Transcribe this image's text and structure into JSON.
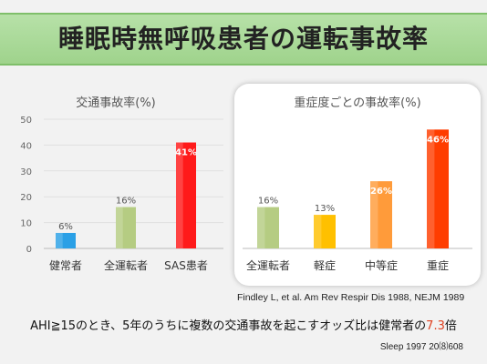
{
  "slide": {
    "title": "睡眠時無呼吸患者の運転事故率",
    "citation": "Findley L, et al. Am Rev Respir Dis 1988, NEJM 1989",
    "summary_before": "AHI≧15のとき、5年のうちに複数の交通事故を起こすオッズ比は健常者の",
    "summary_value": "7.3",
    "summary_after": "倍",
    "reference": "Sleep 1997  20⑻608",
    "colors": {
      "title_band": "#a8d99a",
      "highlight": "#e0401f"
    }
  },
  "chart_data": [
    {
      "type": "bar",
      "title": "交通事故率(%)",
      "categories": [
        "健常者",
        "全運転者",
        "SAS患者"
      ],
      "values": [
        6,
        16,
        41
      ],
      "data_labels": [
        "6%",
        "16%",
        "41%"
      ],
      "colors": [
        "#2aa0e6",
        "#b5cc82",
        "#ff1a1a"
      ],
      "yticks": [
        0,
        10,
        20,
        30,
        40,
        50
      ],
      "ylim": [
        0,
        50
      ],
      "grid": true
    },
    {
      "type": "bar",
      "title": "重症度ごとの事故率(%)",
      "categories": [
        "全運転者",
        "軽症",
        "中等症",
        "重症"
      ],
      "values": [
        16,
        13,
        26,
        46
      ],
      "data_labels": [
        "16%",
        "13%",
        "26%",
        "46%"
      ],
      "colors": [
        "#b5cc82",
        "#ffc000",
        "#ff9b3a",
        "#ff3d00"
      ],
      "ylim": [
        0,
        50
      ],
      "grid": false
    }
  ]
}
